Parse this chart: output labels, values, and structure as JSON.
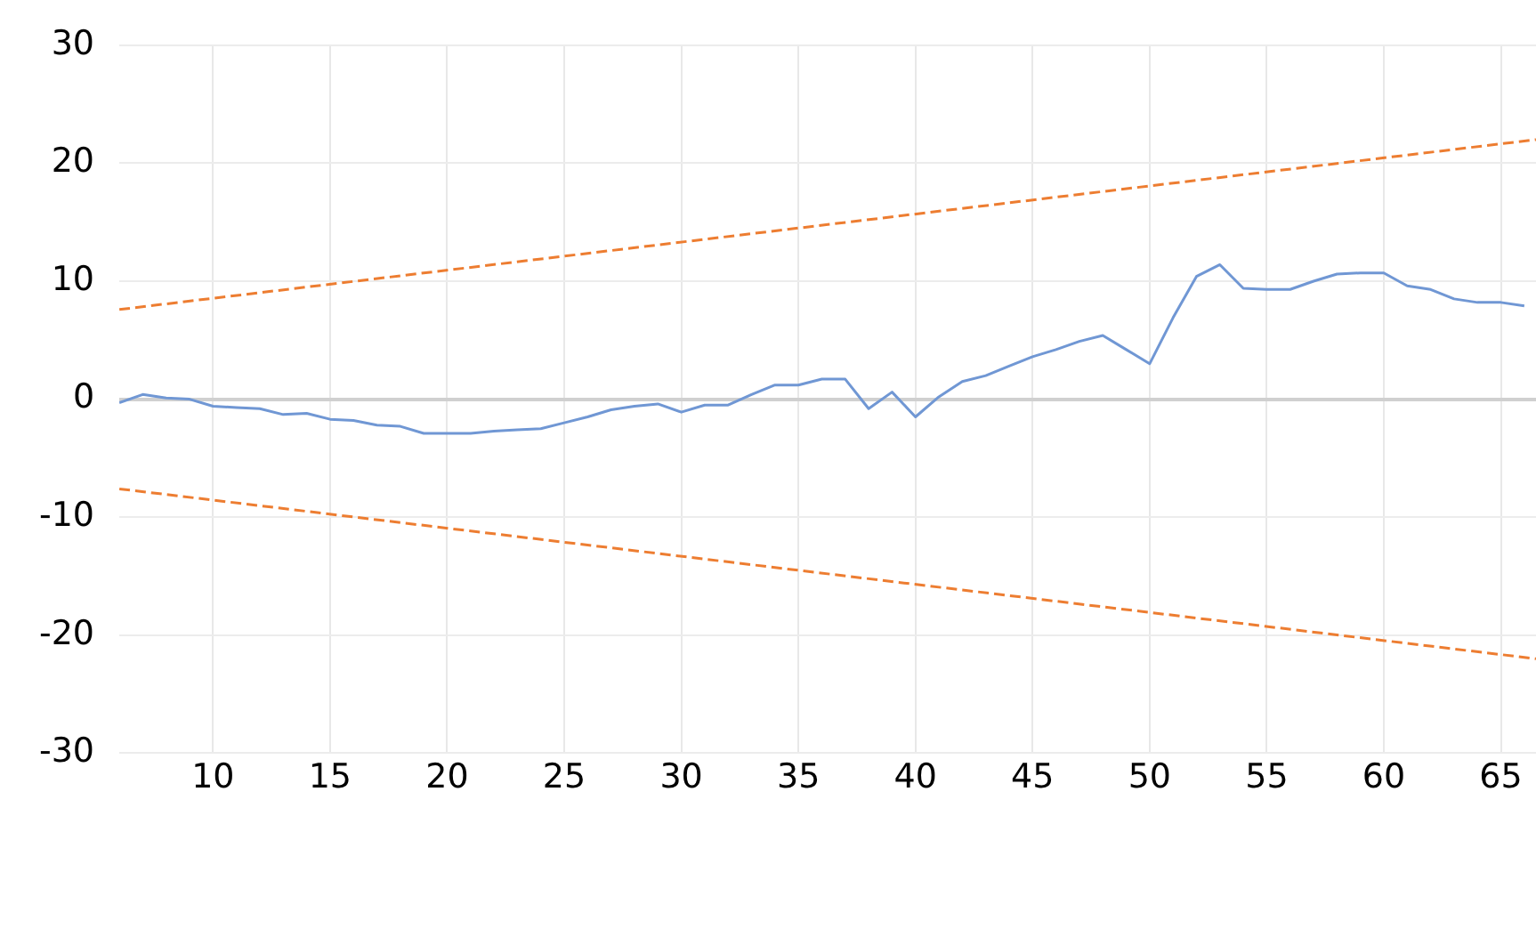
{
  "chart_data": {
    "type": "line",
    "xlim": [
      6,
      66.5
    ],
    "xticks": [
      10,
      15,
      20,
      25,
      30,
      35,
      40,
      45,
      50,
      55,
      60,
      65
    ],
    "ylim": [
      -30,
      30
    ],
    "yticks": [
      -30,
      -20,
      -10,
      0,
      10,
      20,
      30
    ],
    "grid": true,
    "legend": false,
    "marker": "none",
    "series": [
      {
        "color": "#7097d4",
        "line_style": "solid",
        "x": [
          6,
          7,
          8,
          9,
          10,
          11,
          12,
          13,
          14,
          15,
          16,
          17,
          18,
          19,
          20,
          21,
          22,
          23,
          24,
          25,
          26,
          27,
          28,
          29,
          30,
          31,
          32,
          33,
          34,
          35,
          36,
          37,
          38,
          39,
          40,
          41,
          42,
          43,
          44,
          45,
          46,
          47,
          48,
          49,
          50,
          51,
          52,
          53,
          54,
          55,
          56,
          57,
          58,
          59,
          60,
          61,
          62,
          63,
          64,
          65,
          66
        ],
        "values": [
          -0.3,
          0.4,
          0.1,
          0,
          -0.6,
          -0.7,
          -0.8,
          -1.3,
          -1.2,
          -1.7,
          -1.8,
          -2.2,
          -2.3,
          -2.9,
          -2.9,
          -2.9,
          -2.7,
          -2.6,
          -2.5,
          -2,
          -1.5,
          -0.9,
          -0.6,
          -0.4,
          -1.1,
          -0.5,
          -0.5,
          0.4,
          1.2,
          1.2,
          1.7,
          1.7,
          -0.8,
          0.6,
          -1.5,
          0.2,
          1.5,
          2,
          2.8,
          3.6,
          4.2,
          4.9,
          5.4,
          4.2,
          3,
          6.9,
          10.4,
          11.4,
          9.4,
          9.3,
          9.3,
          10,
          10.6,
          10.7,
          10.7,
          9.6,
          9.3,
          8.5,
          8.2,
          8.2,
          7.9
        ]
      },
      {
        "color": "#ed7d31",
        "line_style": "dashed",
        "x": [
          6,
          66.5
        ],
        "values": [
          7.6,
          22
        ]
      },
      {
        "color": "#ed7d31",
        "line_style": "dashed",
        "x": [
          6,
          66.5
        ],
        "values": [
          -7.6,
          -22
        ]
      }
    ]
  }
}
